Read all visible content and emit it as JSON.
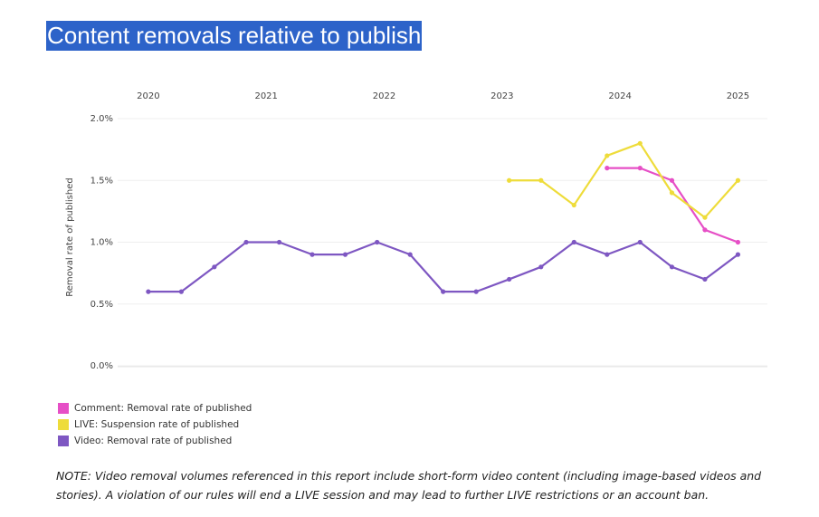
{
  "chart_data": {
    "type": "line",
    "title": "Content removals relative to publish",
    "y_label": "Removal rate of published",
    "x": [
      2020,
      2020.28,
      2020.56,
      2020.83,
      2021.11,
      2021.39,
      2021.67,
      2021.94,
      2022.22,
      2022.5,
      2022.78,
      2023.06,
      2023.33,
      2023.61,
      2023.89,
      2024.17,
      2024.44,
      2024.72,
      2025
    ],
    "xlim": [
      2019.74,
      2025.25
    ],
    "xticks": [
      2020,
      2021,
      2022,
      2023,
      2024,
      2025
    ],
    "ylim": [
      0,
      2
    ],
    "yticks": [
      {
        "value": 0,
        "label": "0.0%"
      },
      {
        "value": 0.5,
        "label": "0.5%"
      },
      {
        "value": 1,
        "label": "1.0%"
      },
      {
        "value": 1.5,
        "label": "1.5%"
      },
      {
        "value": 2,
        "label": "2.0%"
      }
    ],
    "grid": true,
    "series": [
      {
        "name": "Comment: Removal rate of published",
        "color": "#e64fc6",
        "values": [
          null,
          null,
          null,
          null,
          null,
          null,
          null,
          null,
          null,
          null,
          null,
          null,
          null,
          null,
          1.6,
          1.6,
          1.5,
          1.1,
          1.0
        ]
      },
      {
        "name": "LIVE: Suspension rate of published",
        "color": "#eedc3a",
        "values": [
          null,
          null,
          null,
          null,
          null,
          null,
          null,
          null,
          null,
          null,
          null,
          1.5,
          1.5,
          1.3,
          1.7,
          1.8,
          1.4,
          1.2,
          1.5
        ]
      },
      {
        "name": "Video: Removal rate of published",
        "color": "#7e57c2",
        "values": [
          0.6,
          0.6,
          0.8,
          1.0,
          1.0,
          0.9,
          0.9,
          1.0,
          0.9,
          0.6,
          0.6,
          0.7,
          0.8,
          1.0,
          0.9,
          1.0,
          0.8,
          0.7,
          0.9
        ]
      }
    ],
    "note": "NOTE: Video removal volumes referenced in this report include short-form video content (including image-based videos and stories). A violation of our rules will end a LIVE session and may lead to further LIVE restrictions or an account ban."
  }
}
